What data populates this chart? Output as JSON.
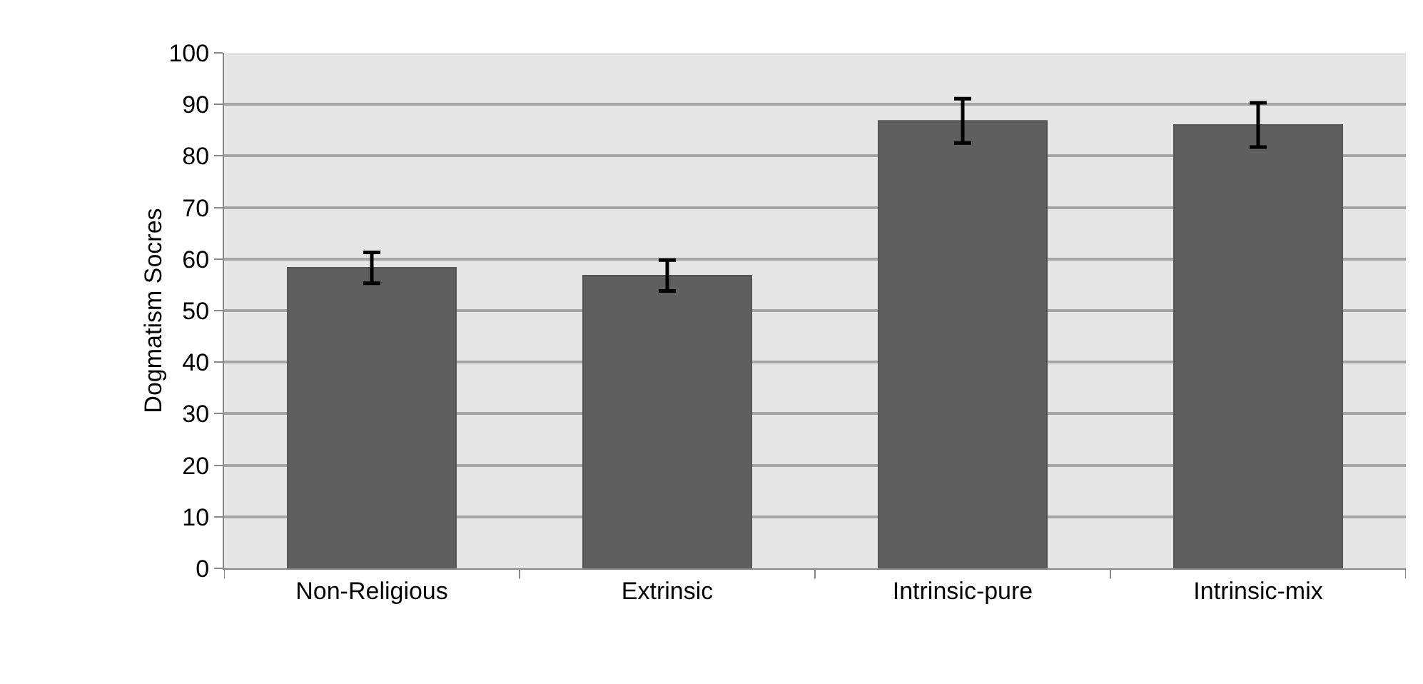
{
  "chart_data": {
    "type": "bar",
    "ylabel": "Dogmatism Socres",
    "categories": [
      "Non-Religious",
      "Extrinsic",
      "Intrinsic-pure",
      "Intrinsic-mix"
    ],
    "values": [
      58.3,
      56.8,
      86.8,
      86.0
    ],
    "errors": [
      3,
      3,
      4.3,
      4.3
    ],
    "color": "#5f5f5f",
    "ylim": [
      0,
      100
    ],
    "yticks": [
      0,
      10,
      20,
      30,
      40,
      50,
      60,
      70,
      80,
      90,
      100
    ],
    "grid": "y"
  }
}
